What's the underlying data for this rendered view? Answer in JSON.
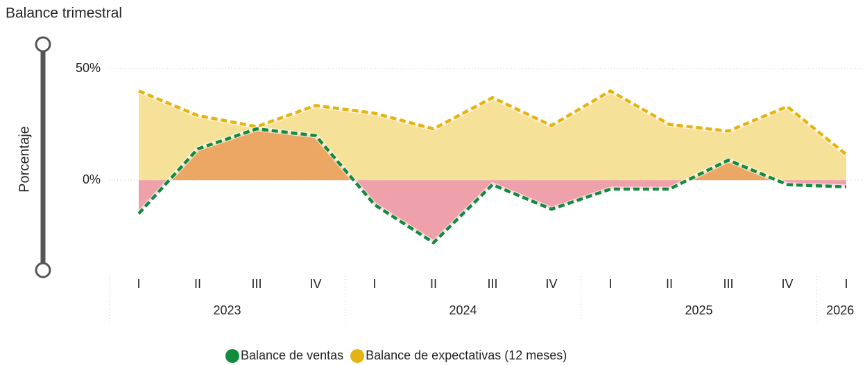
{
  "chart_data": {
    "type": "area",
    "title": "Balance trimestral",
    "y_label": "Porcentaje",
    "categories": [
      "I",
      "II",
      "III",
      "IV",
      "I",
      "II",
      "III",
      "IV",
      "I",
      "II",
      "III",
      "IV",
      "I"
    ],
    "category_years": [
      "2023",
      "2023",
      "2023",
      "2023",
      "2024",
      "2024",
      "2024",
      "2024",
      "2025",
      "2025",
      "2025",
      "2025",
      "2026"
    ],
    "series": [
      {
        "name": "Balance de ventas",
        "color": "#118c3f",
        "values": [
          -15,
          14,
          23,
          20,
          -11,
          -28,
          -2,
          -13,
          -4,
          -4,
          9,
          -2,
          -3
        ]
      },
      {
        "name": "Balance de expectativas (12 meses)",
        "color": "#e6b412",
        "values": [
          40,
          29,
          24,
          33.5,
          30,
          23,
          37,
          24.5,
          40,
          25,
          22,
          33,
          11.5
        ]
      }
    ],
    "ylim": [
      -40,
      55
    ],
    "yticks": [
      {
        "value": 0,
        "label": "0%"
      },
      {
        "value": 50,
        "label": "50%"
      }
    ],
    "grid": true
  }
}
